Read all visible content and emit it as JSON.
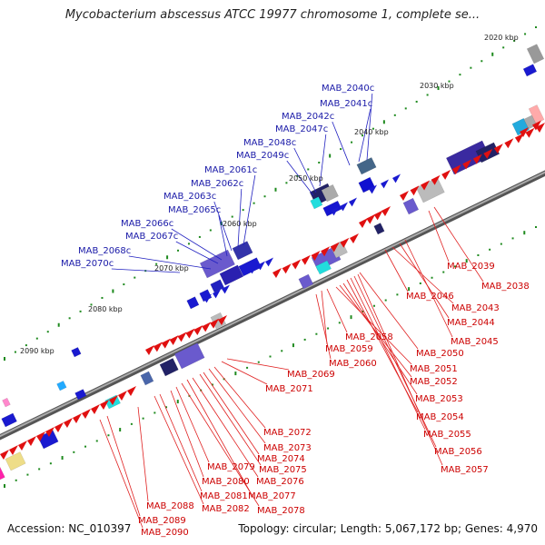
{
  "title": "Mycobacterium abscessus ATCC 19977 chromosome 1, complete se...",
  "accession": "Accession: NC_010397",
  "summary": "Topology: circular; Length: 5,067,172 bp; Genes: 4,970",
  "colors": {
    "forward": "#e01010",
    "reverse": "#3a2aa0",
    "backbone": "#777777",
    "tick": "#1e8a1e",
    "blue_label": "#1a1aa8",
    "red_label": "#cc0000"
  },
  "kbp_ticks": [
    "2020 kbp",
    "2030 kbp",
    "2040 kbp",
    "2050 kbp",
    "2060 kbp",
    "2070 kbp",
    "2080 kbp",
    "2090 kbp"
  ],
  "reverse_genes": [
    "MAB_2040c",
    "MAB_2041c",
    "MAB_2042c",
    "MAB_2047c",
    "MAB_2048c",
    "MAB_2049c",
    "MAB_2061c",
    "MAB_2062c",
    "MAB_2063c",
    "MAB_2065c",
    "MAB_2066c",
    "MAB_2067c",
    "MAB_2068c",
    "MAB_2070c"
  ],
  "forward_genes": [
    "MAB_2039",
    "MAB_2038",
    "MAB_2046",
    "MAB_2043",
    "MAB_2044",
    "MAB_2045",
    "MAB_2050",
    "MAB_2058",
    "MAB_2059",
    "MAB_2060",
    "MAB_2051",
    "MAB_2052",
    "MAB_2053",
    "MAB_2054",
    "MAB_2055",
    "MAB_2056",
    "MAB_2057",
    "MAB_2069",
    "MAB_2071",
    "MAB_2072",
    "MAB_2073",
    "MAB_2074",
    "MAB_2075",
    "MAB_2076",
    "MAB_2077",
    "MAB_2078",
    "MAB_2079",
    "MAB_2080",
    "MAB_2081",
    "MAB_2082",
    "MAB_2088",
    "MAB_2089",
    "MAB_2090"
  ]
}
